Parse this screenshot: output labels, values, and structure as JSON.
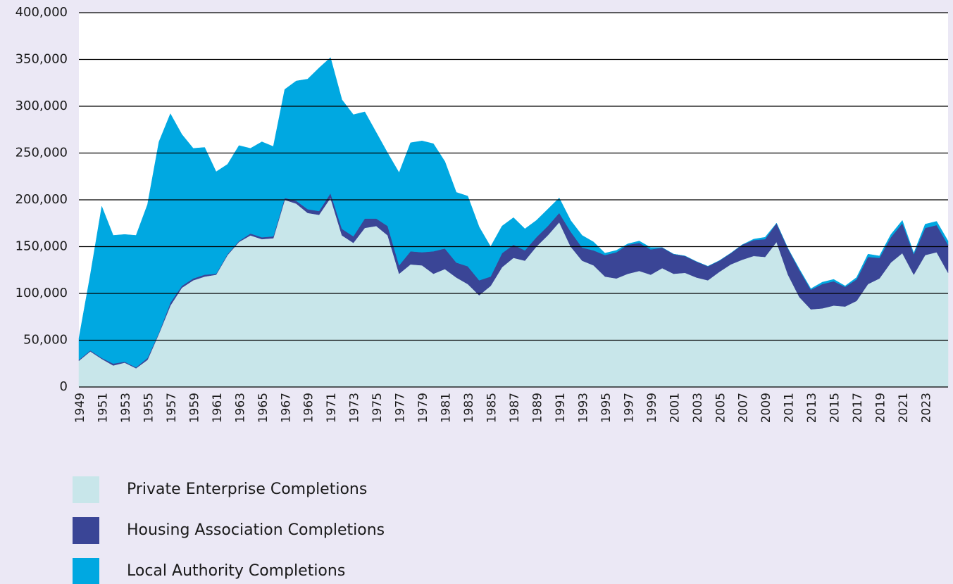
{
  "chart_data": {
    "type": "stacked_area",
    "categories": [
      "1949",
      null,
      "1951",
      null,
      "1953",
      null,
      "1955",
      null,
      "1957",
      null,
      "1959",
      null,
      "1961",
      null,
      "1963",
      null,
      "1965",
      null,
      "1967",
      null,
      "1969",
      null,
      "1971",
      null,
      "1973",
      null,
      "1975",
      null,
      "1977",
      null,
      "1979",
      null,
      "1981",
      null,
      "1983",
      null,
      "1985",
      null,
      "1987",
      null,
      "1989",
      null,
      "1991",
      null,
      "1993",
      null,
      "1995",
      null,
      "1997",
      null,
      "1999",
      null,
      "2001",
      null,
      "2003",
      null,
      "2005",
      null,
      "2007",
      null,
      "2009",
      null,
      "2011",
      null,
      "2013",
      null,
      "2015",
      null,
      "2017",
      null,
      "2019",
      null,
      "2021",
      null,
      "2023",
      null,
      null
    ],
    "series": [
      {
        "name": "Private Enterprise Completions",
        "color": "#c8e6ea",
        "values": [
          28000,
          38000,
          30000,
          23000,
          26000,
          20000,
          29000,
          57000,
          87000,
          106000,
          114000,
          118000,
          120000,
          141000,
          155000,
          162000,
          158000,
          159000,
          200000,
          196000,
          186000,
          184000,
          202000,
          162000,
          154000,
          170000,
          172000,
          162000,
          121000,
          131000,
          130000,
          121000,
          126000,
          117000,
          110000,
          98000,
          108000,
          128000,
          138000,
          135000,
          150000,
          162000,
          176000,
          150000,
          135000,
          130000,
          118000,
          116000,
          121000,
          124000,
          120000,
          127000,
          121000,
          122000,
          117000,
          114000,
          123000,
          131000,
          136000,
          140000,
          139000,
          155000,
          120000,
          96000,
          83000,
          84000,
          87000,
          86000,
          92000,
          110000,
          116000,
          133000,
          143000,
          120000,
          141000,
          144000,
          122000
        ]
      },
      {
        "name": "Housing Association Completions",
        "color": "#3a4596",
        "values": [
          1000,
          1000,
          1000,
          2000,
          1000,
          1000,
          2000,
          1000,
          3000,
          2000,
          2000,
          2000,
          1000,
          1000,
          1000,
          2000,
          2000,
          2000,
          2000,
          3000,
          4000,
          4000,
          5000,
          7000,
          7000,
          10000,
          8000,
          10000,
          9000,
          14000,
          14000,
          24000,
          22000,
          16000,
          19000,
          16000,
          10000,
          15000,
          14000,
          11000,
          10000,
          10000,
          10000,
          16000,
          14000,
          16000,
          23000,
          28000,
          31000,
          30000,
          27000,
          22000,
          21000,
          18000,
          17000,
          15000,
          12000,
          12000,
          16000,
          17000,
          19000,
          20000,
          28000,
          29000,
          21000,
          26000,
          26000,
          21000,
          23000,
          29000,
          22000,
          27000,
          32000,
          22000,
          29000,
          29000,
          30000
        ]
      },
      {
        "name": "Local Authority Completions",
        "color": "#00a8e1",
        "values": [
          23000,
          81000,
          162000,
          137000,
          136000,
          141000,
          164000,
          204000,
          202000,
          162000,
          139000,
          136000,
          109000,
          96000,
          102000,
          91000,
          102000,
          96000,
          116000,
          128000,
          139000,
          153000,
          145000,
          138000,
          130000,
          114000,
          92000,
          78000,
          99000,
          116000,
          119000,
          115000,
          93000,
          75000,
          75000,
          57000,
          32000,
          29000,
          29000,
          23000,
          18000,
          18000,
          16000,
          12000,
          13000,
          9000,
          2000,
          2000,
          1000,
          2000,
          2000,
          0,
          0,
          0,
          0,
          0,
          0,
          0,
          0,
          1000,
          2000,
          0,
          0,
          1000,
          1000,
          2000,
          2000,
          1000,
          2000,
          3000,
          2000,
          3000,
          3000,
          1000,
          4000,
          4000,
          4000
        ]
      }
    ],
    "ylim": [
      0,
      400000
    ],
    "yticks": [
      0,
      {
        "value": 50000,
        "label": "50,000"
      },
      {
        "value": 100000,
        "label": "100,000"
      },
      {
        "value": 150000,
        "label": "150,000"
      },
      {
        "value": 200000,
        "label": "200,000"
      },
      {
        "value": 250000,
        "label": "250,000"
      },
      {
        "value": 300000,
        "label": "300,000"
      },
      {
        "value": 350000,
        "label": "350,000"
      },
      {
        "value": 400000,
        "label": "400,000"
      }
    ],
    "grid": true
  }
}
